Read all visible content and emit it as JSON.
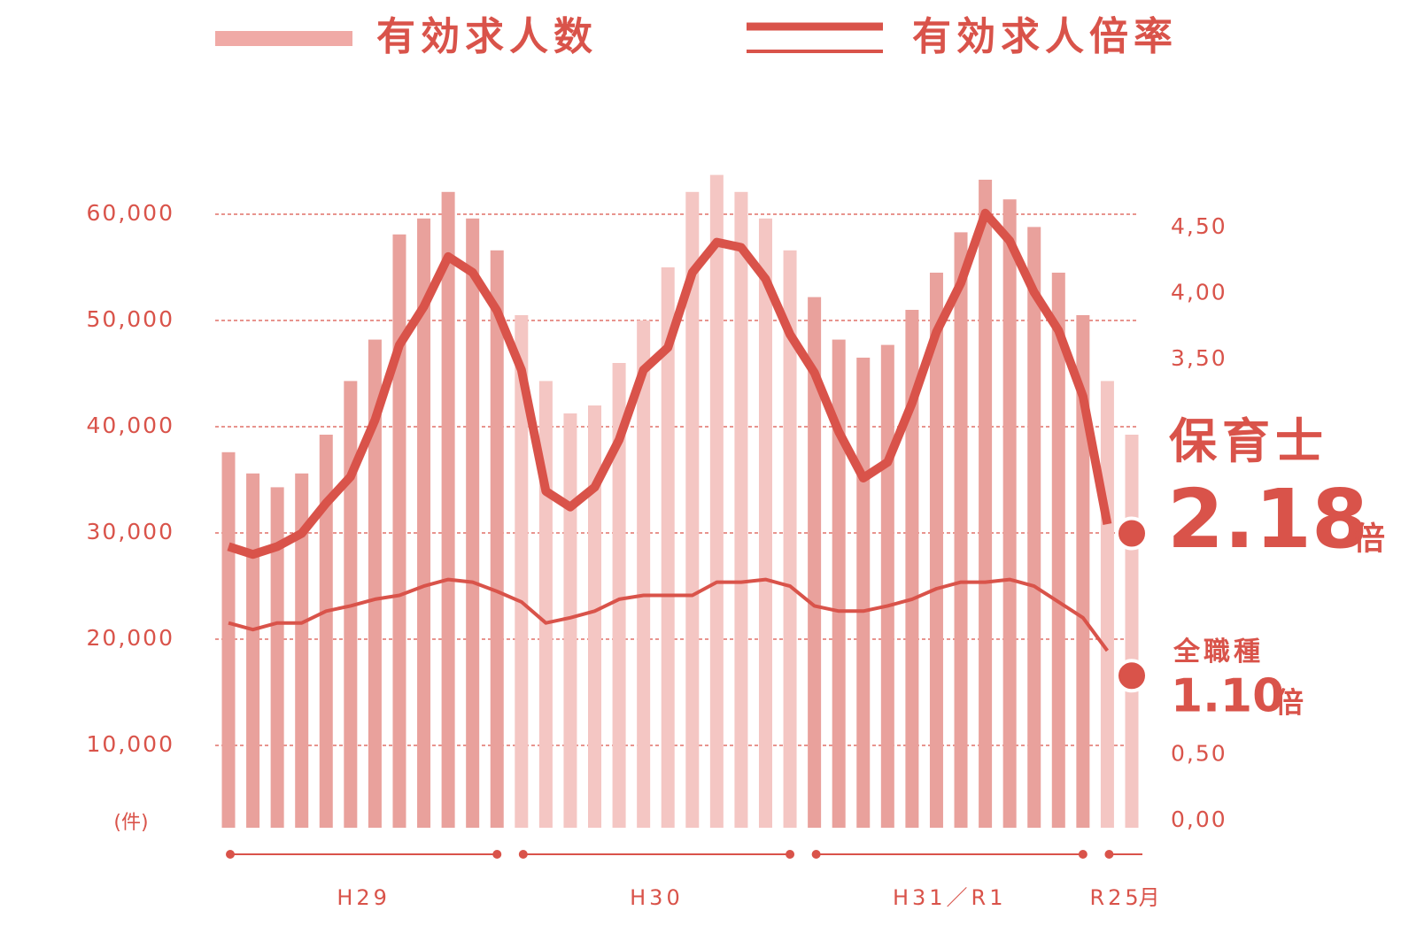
{
  "chart_data": {
    "type": "bar-line",
    "legend": [
      "有効求人数",
      "有効求人倍率"
    ],
    "categories": [
      null,
      null,
      null,
      null,
      null,
      null,
      null,
      null,
      null,
      null,
      null,
      null,
      null,
      null,
      null,
      null,
      null,
      null,
      null,
      null,
      null,
      null,
      null,
      null,
      null,
      null,
      null,
      null,
      null,
      null,
      null,
      null,
      null,
      null,
      null,
      null,
      null,
      null
    ],
    "periods": [
      "H29",
      "H30",
      "H31／R1",
      "R2"
    ],
    "last_month": "5月",
    "y_unit": "(件)",
    "ylim": [
      2250,
      67500
    ],
    "yticks": [
      {
        "value": 10000,
        "label": "10,000"
      },
      {
        "value": 20000,
        "label": "20,000"
      },
      {
        "value": 30000,
        "label": "30,000"
      },
      {
        "value": 40000,
        "label": "40,000"
      },
      {
        "value": 50000,
        "label": "50,000"
      },
      {
        "value": 60000,
        "label": "60,000"
      }
    ],
    "y2lim": [
      0,
      5.2
    ],
    "y2ticks": [
      {
        "value": 0,
        "label": "0,00"
      },
      {
        "value": 0.5,
        "label": "0,50"
      },
      {
        "value": 3.5,
        "label": "3,50"
      },
      {
        "value": 4.0,
        "label": "4,00"
      },
      {
        "value": 4.5,
        "label": "4,50"
      }
    ],
    "grid": true,
    "bars": {
      "name": "有効求人数",
      "values": [
        37600,
        35600,
        34300,
        35600,
        39250,
        44300,
        48200,
        58100,
        59600,
        62100,
        59600,
        56600,
        50500,
        44300,
        41250,
        42000,
        46000,
        50000,
        55000,
        62100,
        63700,
        62100,
        59600,
        56600,
        52200,
        48200,
        46500,
        47700,
        51000,
        54500,
        58300,
        63250,
        61400,
        58800,
        54500,
        50500,
        44300,
        39250
      ],
      "colors": [
        "#e9a19c",
        "#e9a19c",
        "#e9a19c",
        "#e9a19c",
        "#e9a19c",
        "#e9a19c",
        "#e9a19c",
        "#e9a19c",
        "#e9a19c",
        "#e9a19c",
        "#e9a19c",
        "#e9a19c",
        "#f4c6c3",
        "#f4c6c3",
        "#f4c6c3",
        "#f4c6c3",
        "#f4c6c3",
        "#f4c6c3",
        "#f4c6c3",
        "#f4c6c3",
        "#f4c6c3",
        "#f4c6c3",
        "#f4c6c3",
        "#f4c6c3",
        "#e9a19c",
        "#e9a19c",
        "#e9a19c",
        "#e9a19c",
        "#e9a19c",
        "#e9a19c",
        "#e9a19c",
        "#e9a19c",
        "#e9a19c",
        "#e9a19c",
        "#e9a19c",
        "#e9a19c",
        "#f4c6c3",
        "#f4c6c3"
      ]
    },
    "series": [
      {
        "name": "保育士",
        "color": "#d9534a",
        "axis": "y2",
        "unit": "倍",
        "values": [
          2.08,
          2.02,
          2.08,
          2.18,
          2.41,
          2.61,
          3.04,
          3.61,
          3.9,
          4.28,
          4.16,
          3.87,
          3.42,
          2.5,
          2.38,
          2.53,
          2.89,
          3.42,
          3.59,
          4.16,
          4.39,
          4.35,
          4.11,
          3.69,
          3.4,
          2.95,
          2.6,
          2.72,
          3.17,
          3.71,
          4.08,
          4.61,
          4.4,
          4.01,
          3.72,
          3.22,
          2.25,
          2.18
        ]
      },
      {
        "name": "全職種",
        "color": "#d9534a",
        "axis": "y2",
        "unit": "倍",
        "value_label": "1.10",
        "values": [
          1.5,
          1.45,
          1.5,
          1.5,
          1.59,
          1.63,
          1.68,
          1.71,
          1.78,
          1.83,
          1.81,
          1.74,
          1.66,
          1.5,
          1.54,
          1.59,
          1.68,
          1.71,
          1.71,
          1.71,
          1.81,
          1.81,
          1.83,
          1.78,
          1.63,
          1.59,
          1.59,
          1.63,
          1.68,
          1.76,
          1.81,
          1.81,
          1.83,
          1.78,
          1.66,
          1.54,
          1.29,
          1.1
        ]
      }
    ]
  }
}
